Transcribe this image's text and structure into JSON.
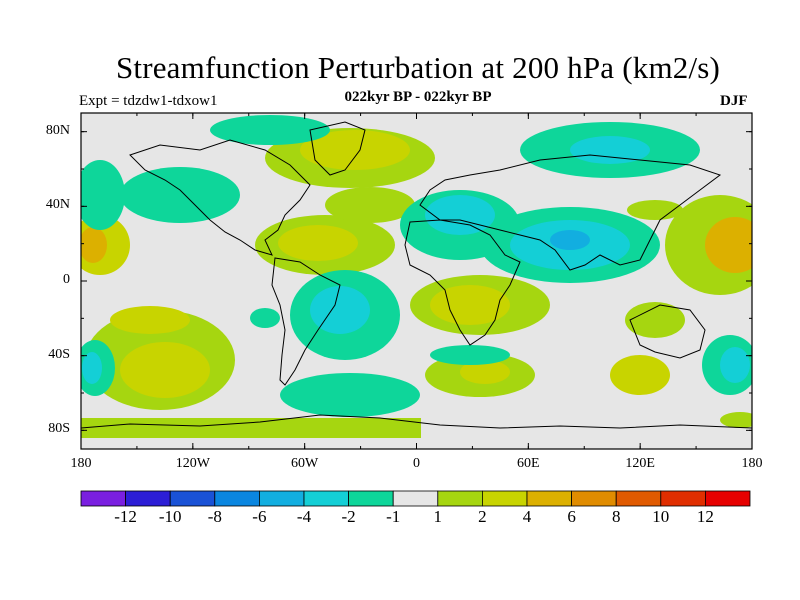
{
  "title": "Streamfunction Perturbation at 200 hPa (km2/s)",
  "subtitle_left": "Expt = tdzdw1-tdxow1",
  "subtitle_center": "022kyr BP - 022kyr BP",
  "subtitle_right": "DJF",
  "map": {
    "projection": "cylindrical equidistant",
    "lon_range": [
      -180,
      180
    ],
    "lat_range": [
      -90,
      90
    ],
    "lat_ticks": [
      {
        "lat": 80,
        "label": "80N"
      },
      {
        "lat": 40,
        "label": "40N"
      },
      {
        "lat": 0,
        "label": "0"
      },
      {
        "lat": -40,
        "label": "40S"
      },
      {
        "lat": -80,
        "label": "80S"
      }
    ],
    "lon_ticks": [
      {
        "lon": -180,
        "label": "180"
      },
      {
        "lon": -120,
        "label": "120W"
      },
      {
        "lon": -60,
        "label": "60W"
      },
      {
        "lon": 0,
        "label": "0"
      },
      {
        "lon": 60,
        "label": "60E"
      },
      {
        "lon": 120,
        "label": "120E"
      },
      {
        "lon": 180,
        "label": "180"
      }
    ],
    "background_color": "#e6e6e6",
    "colorbar": {
      "colors": [
        "#7a1fe0",
        "#2c1ed6",
        "#1a52d6",
        "#0a86e0",
        "#12aee0",
        "#14cfd6",
        "#0ed69a",
        "#e6e6e6",
        "#a6d610",
        "#c8d400",
        "#dcb000",
        "#e08c00",
        "#e05a00",
        "#e02e00",
        "#e60000"
      ],
      "labels": [
        "-12",
        "-10",
        "-8",
        "-6",
        "-4",
        "-2",
        "-1",
        "1",
        "2",
        "4",
        "6",
        "8",
        "10",
        "12"
      ]
    }
  }
}
